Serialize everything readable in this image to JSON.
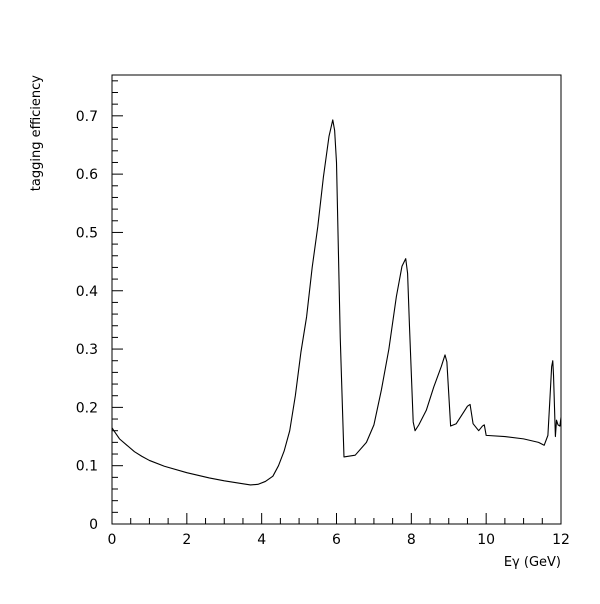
{
  "chart_data": {
    "type": "line",
    "title": "",
    "xlabel": "Eγ (GeV)",
    "ylabel": "tagging efficiency",
    "xlim": [
      0,
      12
    ],
    "ylim": [
      0,
      0.77
    ],
    "xticks": [
      0,
      2,
      4,
      6,
      8,
      10,
      12
    ],
    "xtick_labels": [
      "0",
      "2",
      "4",
      "6",
      "8",
      "10",
      "12"
    ],
    "yticks": [
      0,
      0.1,
      0.2,
      0.3,
      0.4,
      0.5,
      0.6,
      0.7
    ],
    "ytick_labels": [
      "0",
      "0.1",
      "0.2",
      "0.3",
      "0.4",
      "0.5",
      "0.6",
      "0.7"
    ],
    "grid": false,
    "colors": {
      "line": "#000000",
      "axes": "#000000",
      "background": "#ffffff"
    },
    "series": [
      {
        "x": [
          0.0,
          0.05,
          0.2,
          0.4,
          0.6,
          0.8,
          1.0,
          1.4,
          2.0,
          2.6,
          3.0,
          3.4,
          3.7,
          3.9,
          4.1,
          4.3,
          4.45,
          4.6,
          4.75,
          4.9,
          5.05,
          5.2,
          5.35,
          5.5,
          5.65,
          5.8,
          5.9,
          5.95,
          6.0,
          6.1,
          6.2,
          6.5,
          6.8,
          7.0,
          7.2,
          7.4,
          7.6,
          7.75,
          7.85,
          7.9,
          7.95,
          8.05,
          8.1,
          8.2,
          8.4,
          8.6,
          8.8,
          8.9,
          8.95,
          9.05,
          9.2,
          9.4,
          9.5,
          9.57,
          9.65,
          9.8,
          9.9,
          9.95,
          10.0,
          10.5,
          11.0,
          11.4,
          11.55,
          11.65,
          11.7,
          11.75,
          11.78,
          11.8,
          11.85,
          11.88,
          11.92,
          11.97,
          12.0
        ],
        "y": [
          0.165,
          0.16,
          0.146,
          0.135,
          0.124,
          0.116,
          0.109,
          0.099,
          0.088,
          0.079,
          0.074,
          0.07,
          0.067,
          0.068,
          0.073,
          0.082,
          0.1,
          0.125,
          0.16,
          0.22,
          0.295,
          0.355,
          0.44,
          0.51,
          0.595,
          0.665,
          0.693,
          0.675,
          0.62,
          0.32,
          0.115,
          0.118,
          0.14,
          0.17,
          0.23,
          0.3,
          0.39,
          0.442,
          0.455,
          0.43,
          0.34,
          0.175,
          0.16,
          0.17,
          0.195,
          0.235,
          0.27,
          0.29,
          0.278,
          0.168,
          0.172,
          0.192,
          0.202,
          0.205,
          0.172,
          0.16,
          0.168,
          0.17,
          0.152,
          0.15,
          0.146,
          0.14,
          0.135,
          0.152,
          0.21,
          0.27,
          0.28,
          0.255,
          0.15,
          0.178,
          0.17,
          0.168,
          0.183
        ]
      }
    ]
  }
}
